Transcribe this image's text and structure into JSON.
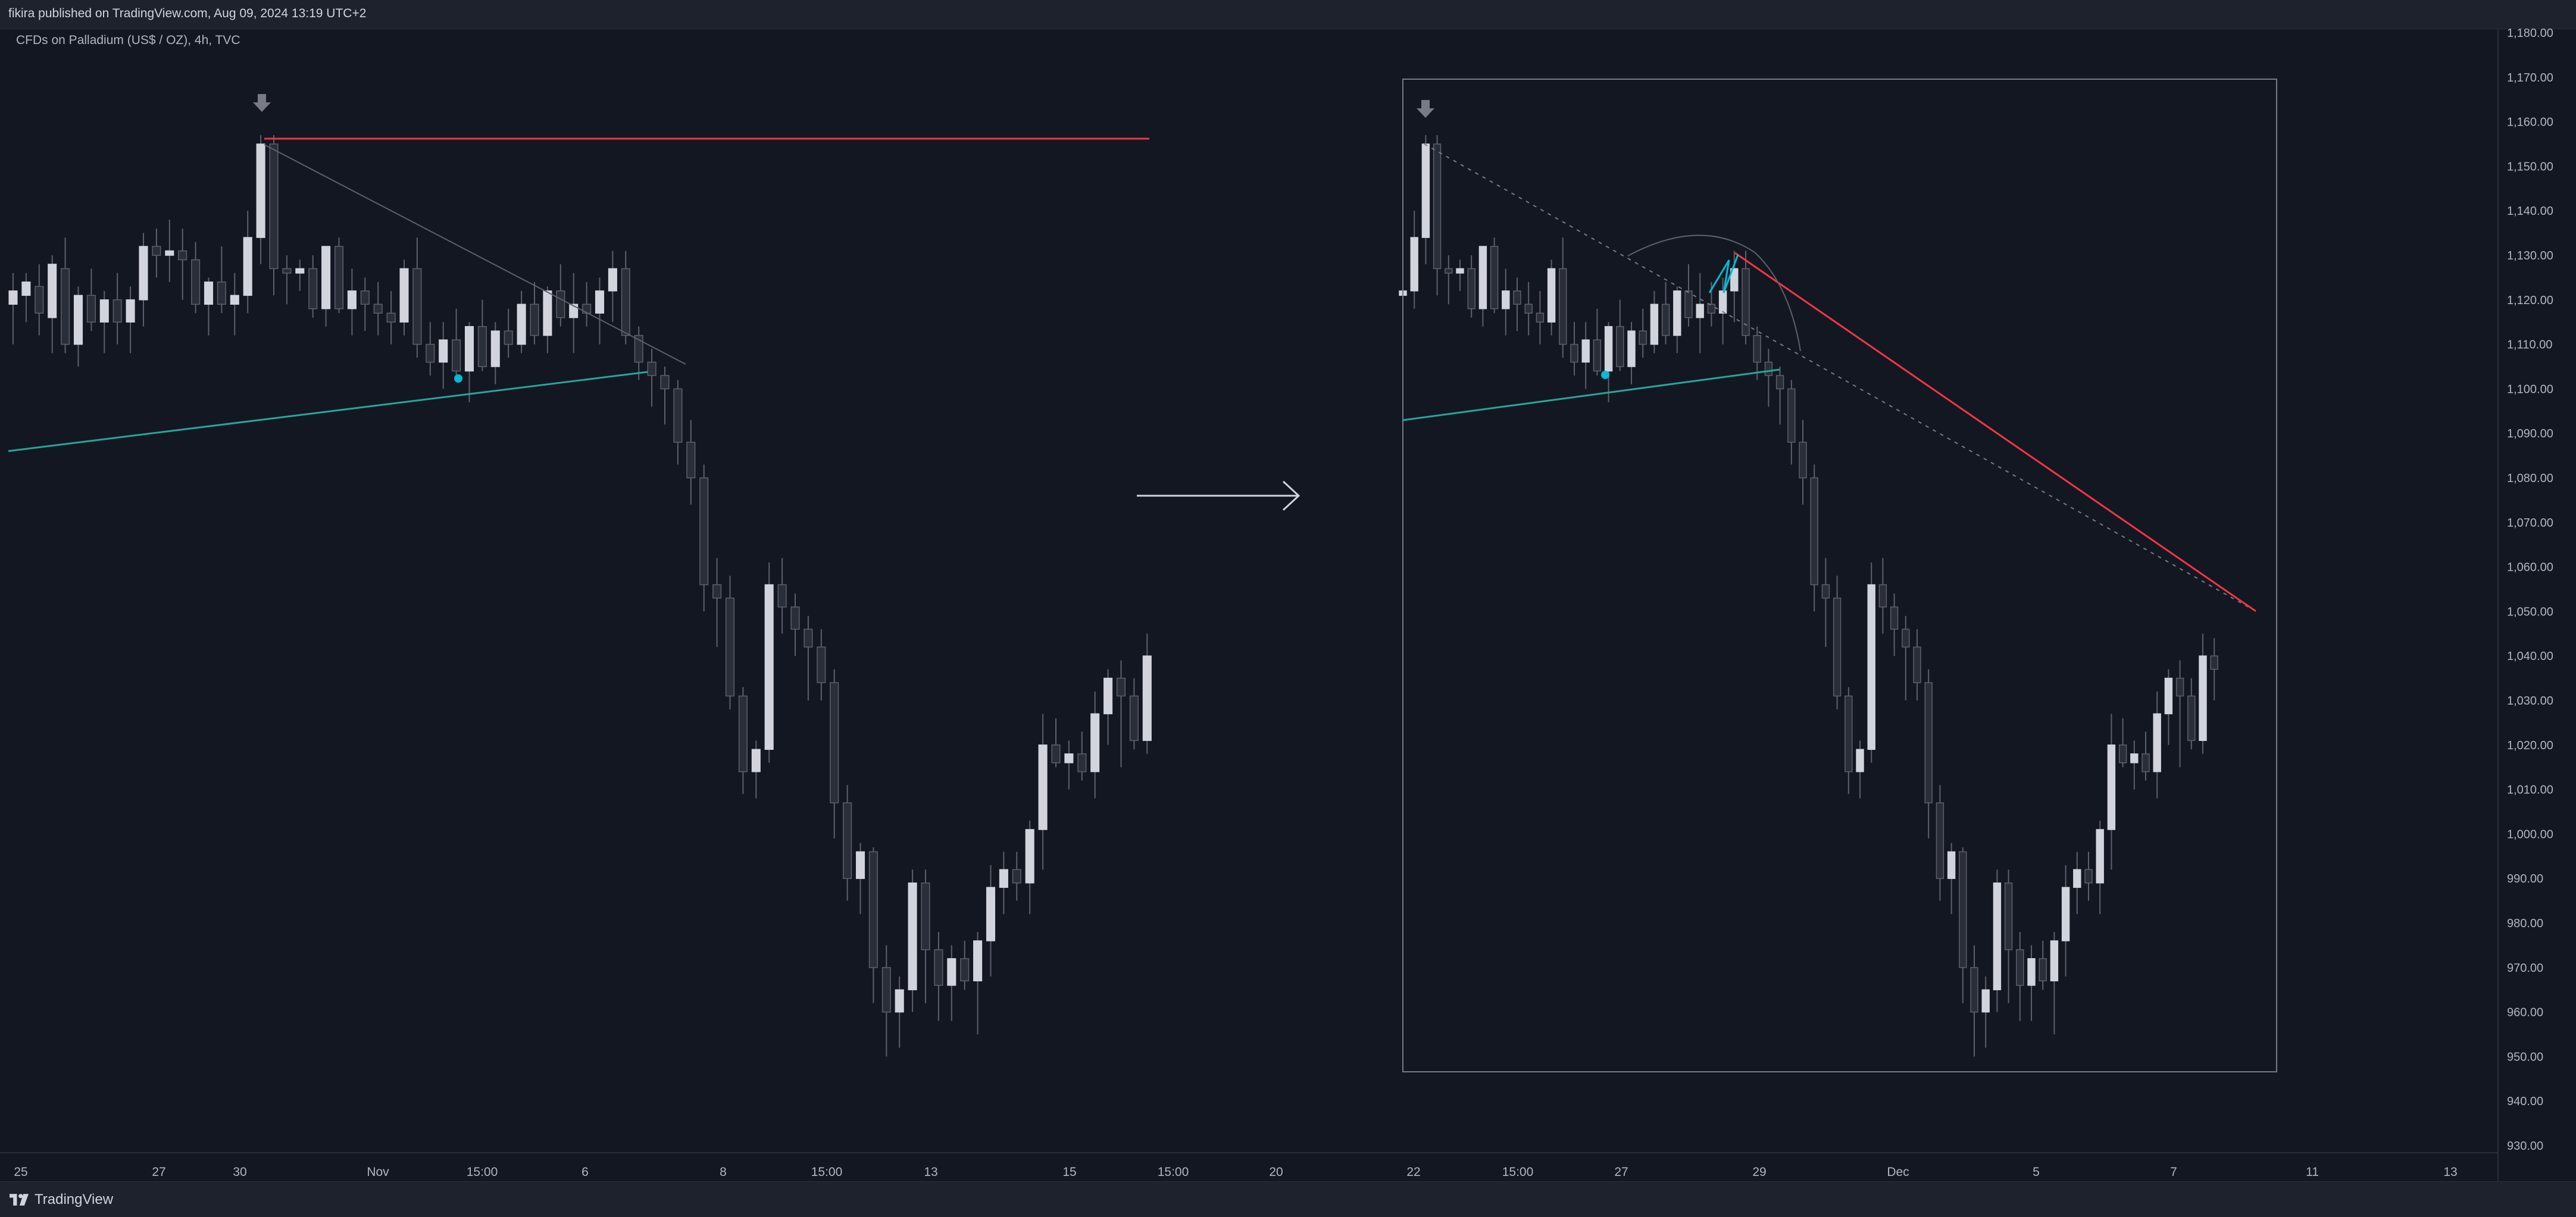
{
  "header": {
    "publish_line": "fikira published on TradingView.com, Aug 09, 2024 13:19 UTC+2"
  },
  "legend": {
    "symbol_line": "CFDs on Palladium (US$ / OZ), 4h, TVC"
  },
  "footer": {
    "brand": "TradingView"
  },
  "colors": {
    "background": "#131722",
    "candle_up": "#d1d4dc",
    "candle_down": "#2a2e39",
    "resistance_line": "#f23645",
    "trend_line": "#26a69a",
    "marker_dot": "#00bcd4",
    "arrow_marker": "#787b86"
  },
  "chart_data": [
    {
      "type": "candlestick",
      "panel": "left",
      "x_axis_labels": [
        "25",
        "27",
        "30",
        "Nov",
        "15:00",
        "6",
        "8",
        "15:00",
        "13",
        "15",
        "15:00",
        "20"
      ],
      "y_range": [
        930,
        1180
      ],
      "candles_ohlc": [
        [
          1119,
          1126,
          1110,
          1122
        ],
        [
          1121,
          1126,
          1115,
          1124
        ],
        [
          1123,
          1128,
          1112,
          1117
        ],
        [
          1116,
          1130,
          1108,
          1128
        ],
        [
          1127,
          1134,
          1108,
          1110
        ],
        [
          1110,
          1123,
          1105,
          1121
        ],
        [
          1121,
          1127,
          1113,
          1115
        ],
        [
          1115,
          1122,
          1108,
          1120
        ],
        [
          1120,
          1126,
          1110,
          1115
        ],
        [
          1115,
          1123,
          1108,
          1120
        ],
        [
          1120,
          1135,
          1114,
          1132
        ],
        [
          1132,
          1136,
          1125,
          1130
        ],
        [
          1130,
          1138,
          1124,
          1131
        ],
        [
          1131,
          1136,
          1120,
          1129
        ],
        [
          1129,
          1133,
          1117,
          1119
        ],
        [
          1119,
          1125,
          1112,
          1124
        ],
        [
          1124,
          1132,
          1117,
          1119
        ],
        [
          1119,
          1126,
          1112,
          1121
        ],
        [
          1121,
          1140,
          1117,
          1134
        ],
        [
          1134,
          1157,
          1128,
          1155
        ],
        [
          1155,
          1157,
          1121,
          1127
        ],
        [
          1127,
          1130,
          1119,
          1126
        ],
        [
          1126,
          1129,
          1122,
          1127
        ],
        [
          1127,
          1130,
          1116,
          1118
        ],
        [
          1118,
          1132,
          1114,
          1132
        ],
        [
          1132,
          1134,
          1117,
          1118
        ],
        [
          1118,
          1127,
          1112,
          1122
        ],
        [
          1122,
          1125,
          1113,
          1119
        ],
        [
          1119,
          1124,
          1112,
          1117
        ],
        [
          1117,
          1122,
          1110,
          1115
        ],
        [
          1115,
          1129,
          1112,
          1127
        ],
        [
          1127,
          1134,
          1107,
          1110
        ],
        [
          1110,
          1115,
          1103,
          1106
        ],
        [
          1106,
          1115,
          1100,
          1111
        ],
        [
          1111,
          1118,
          1103,
          1104
        ],
        [
          1104,
          1115,
          1097,
          1114
        ],
        [
          1114,
          1120,
          1104,
          1105
        ],
        [
          1105,
          1115,
          1101,
          1113
        ],
        [
          1113,
          1118,
          1107,
          1110
        ],
        [
          1110,
          1122,
          1108,
          1119
        ],
        [
          1119,
          1124,
          1110,
          1112
        ],
        [
          1112,
          1123,
          1108,
          1122
        ],
        [
          1122,
          1128,
          1114,
          1116
        ],
        [
          1116,
          1126,
          1108,
          1119
        ],
        [
          1119,
          1124,
          1114,
          1117
        ],
        [
          1117,
          1125,
          1110,
          1122
        ],
        [
          1122,
          1131,
          1115,
          1127
        ],
        [
          1127,
          1131,
          1110,
          1112
        ],
        [
          1112,
          1114,
          1102,
          1106
        ],
        [
          1106,
          1109,
          1096,
          1103
        ],
        [
          1103,
          1105,
          1092,
          1100
        ],
        [
          1100,
          1102,
          1083,
          1088
        ],
        [
          1088,
          1093,
          1074,
          1080
        ],
        [
          1080,
          1083,
          1050,
          1056
        ],
        [
          1056,
          1062,
          1042,
          1053
        ],
        [
          1053,
          1058,
          1028,
          1031
        ],
        [
          1031,
          1033,
          1009,
          1014
        ],
        [
          1014,
          1021,
          1008,
          1019
        ],
        [
          1019,
          1061,
          1016,
          1056
        ],
        [
          1056,
          1062,
          1045,
          1051
        ],
        [
          1051,
          1054,
          1040,
          1046
        ],
        [
          1046,
          1049,
          1030,
          1042
        ],
        [
          1042,
          1046,
          1030,
          1034
        ],
        [
          1034,
          1037,
          999,
          1007
        ],
        [
          1007,
          1011,
          985,
          990
        ],
        [
          990,
          998,
          982,
          996
        ],
        [
          996,
          997,
          962,
          970
        ],
        [
          970,
          975,
          950,
          960
        ],
        [
          960,
          968,
          952,
          965
        ],
        [
          965,
          992,
          960,
          989
        ],
        [
          989,
          992,
          962,
          974
        ],
        [
          974,
          978,
          958,
          966
        ],
        [
          966,
          975,
          958,
          972
        ],
        [
          972,
          976,
          965,
          967
        ],
        [
          967,
          978,
          955,
          976
        ],
        [
          976,
          993,
          968,
          988
        ],
        [
          988,
          996,
          982,
          992
        ],
        [
          992,
          996,
          985,
          989
        ],
        [
          989,
          1003,
          982,
          1001
        ],
        [
          1001,
          1027,
          992,
          1020
        ],
        [
          1020,
          1026,
          1015,
          1016
        ],
        [
          1016,
          1021,
          1010,
          1018
        ],
        [
          1018,
          1023,
          1012,
          1014
        ],
        [
          1014,
          1032,
          1008,
          1027
        ],
        [
          1027,
          1037,
          1020,
          1035
        ],
        [
          1035,
          1039,
          1015,
          1031
        ],
        [
          1031,
          1035,
          1019,
          1021
        ],
        [
          1021,
          1045,
          1018,
          1040
        ]
      ],
      "annotations": [
        "horizontal resistance line",
        "rising trend line",
        "dotted descending line",
        "down arrow marker",
        "dot marker"
      ]
    },
    {
      "type": "candlestick",
      "panel": "right",
      "x_axis_labels": [
        "22",
        "15:00",
        "27",
        "29",
        "Dec",
        "5",
        "7",
        "11",
        "13"
      ],
      "y_range": [
        930,
        1180
      ],
      "y_axis_ticks": [
        "1,180.00",
        "1,170.00",
        "1,160.00",
        "1,150.00",
        "1,140.00",
        "1,130.00",
        "1,120.00",
        "1,110.00",
        "1,100.00",
        "1,090.00",
        "1,080.00",
        "1,070.00",
        "1,060.00",
        "1,050.00",
        "1,040.00",
        "1,030.00",
        "1,020.00",
        "1,010.00",
        "1,000.00",
        "990.00",
        "980.00",
        "970.00",
        "960.00",
        "950.00",
        "940.00",
        "930.00"
      ],
      "candles_ohlc": [
        [
          1121,
          1126,
          1118,
          1122
        ],
        [
          1122,
          1140,
          1118,
          1134
        ],
        [
          1134,
          1157,
          1128,
          1155
        ],
        [
          1155,
          1157,
          1121,
          1127
        ],
        [
          1127,
          1130,
          1119,
          1126
        ],
        [
          1126,
          1129,
          1122,
          1127
        ],
        [
          1127,
          1130,
          1116,
          1118
        ],
        [
          1118,
          1132,
          1114,
          1132
        ],
        [
          1132,
          1134,
          1117,
          1118
        ],
        [
          1118,
          1127,
          1112,
          1122
        ],
        [
          1122,
          1125,
          1113,
          1119
        ],
        [
          1119,
          1124,
          1112,
          1117
        ],
        [
          1117,
          1122,
          1110,
          1115
        ],
        [
          1115,
          1129,
          1112,
          1127
        ],
        [
          1127,
          1134,
          1107,
          1110
        ],
        [
          1110,
          1115,
          1103,
          1106
        ],
        [
          1106,
          1115,
          1100,
          1111
        ],
        [
          1111,
          1118,
          1103,
          1104
        ],
        [
          1104,
          1115,
          1097,
          1114
        ],
        [
          1114,
          1120,
          1104,
          1105
        ],
        [
          1105,
          1115,
          1101,
          1113
        ],
        [
          1113,
          1118,
          1107,
          1110
        ],
        [
          1110,
          1122,
          1108,
          1119
        ],
        [
          1119,
          1124,
          1110,
          1112
        ],
        [
          1112,
          1123,
          1108,
          1122
        ],
        [
          1122,
          1128,
          1114,
          1116
        ],
        [
          1116,
          1126,
          1108,
          1119
        ],
        [
          1119,
          1124,
          1114,
          1117
        ],
        [
          1117,
          1125,
          1110,
          1122
        ],
        [
          1122,
          1131,
          1115,
          1127
        ],
        [
          1127,
          1131,
          1110,
          1112
        ],
        [
          1112,
          1114,
          1102,
          1106
        ],
        [
          1106,
          1109,
          1096,
          1103
        ],
        [
          1103,
          1105,
          1092,
          1100
        ],
        [
          1100,
          1102,
          1083,
          1088
        ],
        [
          1088,
          1093,
          1074,
          1080
        ],
        [
          1080,
          1083,
          1050,
          1056
        ],
        [
          1056,
          1062,
          1042,
          1053
        ],
        [
          1053,
          1058,
          1028,
          1031
        ],
        [
          1031,
          1033,
          1009,
          1014
        ],
        [
          1014,
          1021,
          1008,
          1019
        ],
        [
          1019,
          1061,
          1016,
          1056
        ],
        [
          1056,
          1062,
          1045,
          1051
        ],
        [
          1051,
          1054,
          1040,
          1046
        ],
        [
          1046,
          1049,
          1030,
          1042
        ],
        [
          1042,
          1046,
          1030,
          1034
        ],
        [
          1034,
          1037,
          999,
          1007
        ],
        [
          1007,
          1011,
          985,
          990
        ],
        [
          990,
          998,
          982,
          996
        ],
        [
          996,
          997,
          962,
          970
        ],
        [
          970,
          975,
          950,
          960
        ],
        [
          960,
          968,
          952,
          965
        ],
        [
          965,
          992,
          960,
          989
        ],
        [
          989,
          992,
          962,
          974
        ],
        [
          974,
          978,
          958,
          966
        ],
        [
          966,
          975,
          958,
          972
        ],
        [
          972,
          976,
          965,
          967
        ],
        [
          967,
          978,
          955,
          976
        ],
        [
          976,
          993,
          968,
          988
        ],
        [
          988,
          996,
          982,
          992
        ],
        [
          992,
          996,
          985,
          989
        ],
        [
          989,
          1003,
          982,
          1001
        ],
        [
          1001,
          1027,
          992,
          1020
        ],
        [
          1020,
          1026,
          1015,
          1016
        ],
        [
          1016,
          1021,
          1010,
          1018
        ],
        [
          1018,
          1023,
          1012,
          1014
        ],
        [
          1014,
          1032,
          1008,
          1027
        ],
        [
          1027,
          1037,
          1020,
          1035
        ],
        [
          1035,
          1039,
          1015,
          1031
        ],
        [
          1031,
          1035,
          1019,
          1021
        ],
        [
          1021,
          1045,
          1018,
          1040
        ],
        [
          1040,
          1044,
          1030,
          1037
        ]
      ],
      "annotations": [
        "rectangle selection",
        "descending resistance line",
        "rising trend line",
        "dotted descending line",
        "arc",
        "zigzag pattern",
        "down arrow marker",
        "dot marker"
      ]
    }
  ]
}
